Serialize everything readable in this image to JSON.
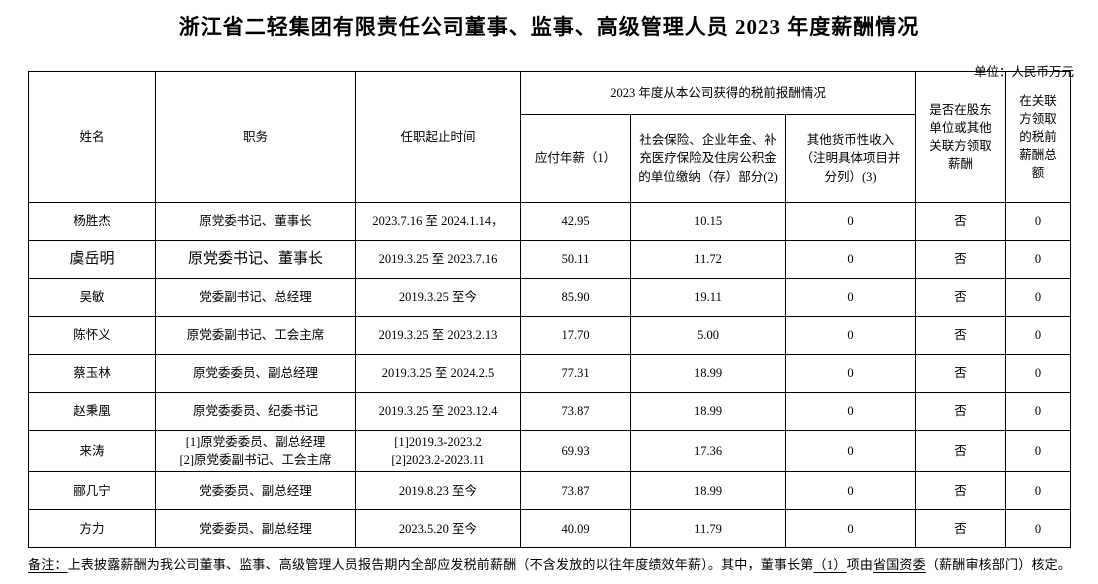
{
  "title": "浙江省二轻集团有限责任公司董事、监事、高级管理人员 2023 年度薪酬情况",
  "unit_label": "单位：人民币万元",
  "table": {
    "headers": {
      "name": "姓名",
      "position": "职务",
      "tenure": "任职起止时间",
      "compensation_group": "2023 年度从本公司获得的税前报酬情况",
      "payable_salary": "应付年薪（1）",
      "social_insurance": "社会保险、企业年金、补充医疗保险及住房公积金的单位缴纳（存）部分(2)",
      "other_income": "其他货币性收入（注明具体项目并分列）(3)",
      "related_party": "是否在股东单位或其他关联方领取薪酬",
      "related_total": "在关联方领取的税前薪酬总额"
    },
    "rows": [
      {
        "name": "杨胜杰",
        "position": "原党委书记、董事长",
        "tenure": "2023.7.16 至 2024.1.14，",
        "salary": "42.95",
        "insurance": "10.15",
        "other": "0",
        "related": "否",
        "related_total": "0"
      },
      {
        "name": "虞岳明",
        "position": "原党委书记、董事长",
        "tenure": "2019.3.25 至 2023.7.16",
        "salary": "50.11",
        "insurance": "11.72",
        "other": "0",
        "related": "否",
        "related_total": "0"
      },
      {
        "name": "吴敏",
        "position": "党委副书记、总经理",
        "tenure": "2019.3.25 至今",
        "salary": "85.90",
        "insurance": "19.11",
        "other": "0",
        "related": "否",
        "related_total": "0"
      },
      {
        "name": "陈怀义",
        "position": "原党委副书记、工会主席",
        "tenure": "2019.3.25 至 2023.2.13",
        "salary": "17.70",
        "insurance": "5.00",
        "other": "0",
        "related": "否",
        "related_total": "0"
      },
      {
        "name": "蔡玉林",
        "position": "原党委委员、副总经理",
        "tenure": "2019.3.25 至 2024.2.5",
        "salary": "77.31",
        "insurance": "18.99",
        "other": "0",
        "related": "否",
        "related_total": "0"
      },
      {
        "name": "赵秉凰",
        "position": "原党委委员、纪委书记",
        "tenure": "2019.3.25 至 2023.12.4",
        "salary": "73.87",
        "insurance": "18.99",
        "other": "0",
        "related": "否",
        "related_total": "0"
      },
      {
        "name": "来涛",
        "position": "[1]原党委委员、副总经理\n[2]原党委副书记、工会主席",
        "tenure": "[1]2019.3-2023.2\n[2]2023.2-2023.11",
        "salary": "69.93",
        "insurance": "17.36",
        "other": "0",
        "related": "否",
        "related_total": "0"
      },
      {
        "name": "郦几宁",
        "position": "党委委员、副总经理",
        "tenure": "2019.8.23 至今",
        "salary": "73.87",
        "insurance": "18.99",
        "other": "0",
        "related": "否",
        "related_total": "0"
      },
      {
        "name": "方力",
        "position": "党委委员、副总经理",
        "tenure": "2023.5.20 至今",
        "salary": "40.09",
        "insurance": "11.79",
        "other": "0",
        "related": "否",
        "related_total": "0"
      }
    ]
  },
  "note": {
    "segments": [
      {
        "text": "备注："
      },
      {
        "text": "上表披露薪酬为我公司董事、监事、高级管理人员报告期内全部应发税前薪酬（不含发放的以往年度绩效年薪）。其中，董事长第"
      },
      {
        "text": "（1）"
      },
      {
        "text": "项由"
      },
      {
        "text": "省国资委"
      },
      {
        "text": "（薪酬审核部门）核定。"
      }
    ]
  }
}
